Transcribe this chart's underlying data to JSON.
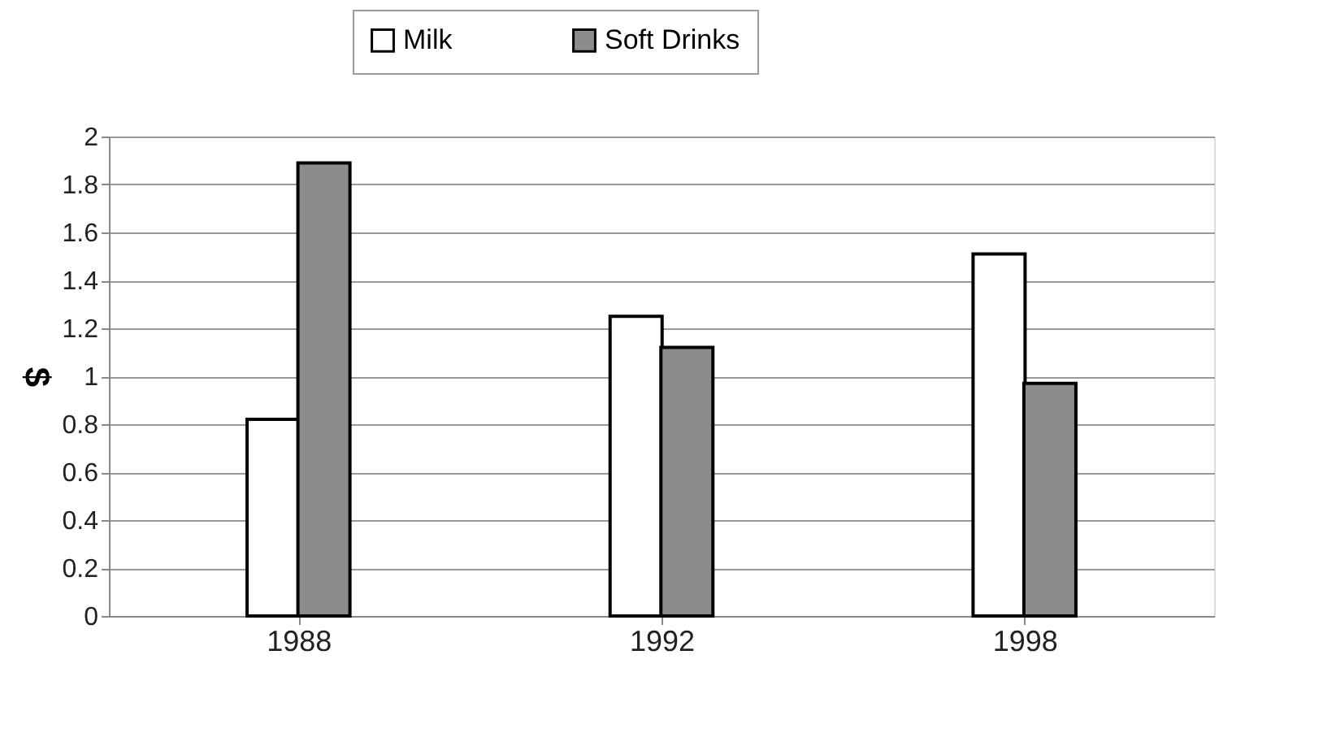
{
  "chart_data": {
    "type": "bar",
    "categories": [
      "1988",
      "1992",
      "1998"
    ],
    "ylabel": "$",
    "series": [
      {
        "name": "Milk",
        "color": "#ffffff",
        "values": [
          0.82,
          1.25,
          1.51
        ]
      },
      {
        "name": "Soft Drinks",
        "color": "#8c8c8c",
        "values": [
          1.89,
          1.12,
          0.97
        ]
      }
    ],
    "ylim": [
      0,
      2
    ],
    "yticks": [
      0,
      0.2,
      0.4,
      0.6,
      0.8,
      1,
      1.2,
      1.4,
      1.6,
      1.8,
      2
    ],
    "grid": "y",
    "legend": "top"
  }
}
